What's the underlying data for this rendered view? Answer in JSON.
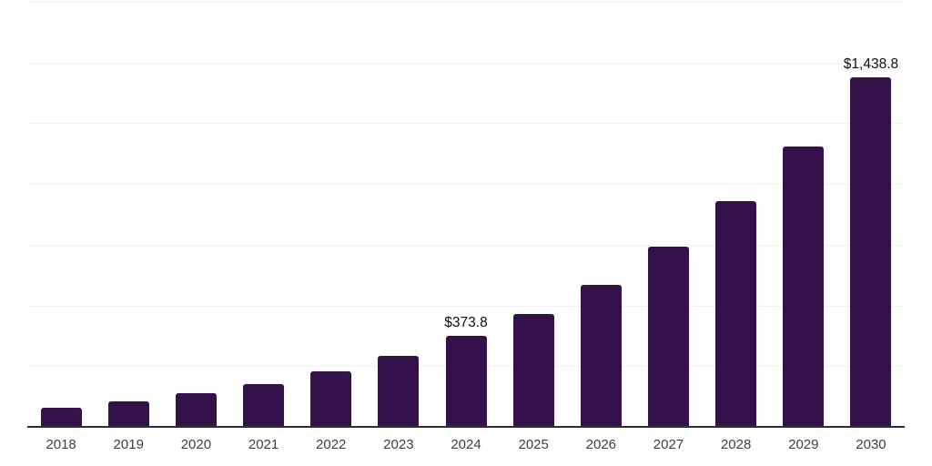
{
  "chart_data": {
    "type": "bar",
    "title": "",
    "xlabel": "",
    "ylabel": "",
    "categories": [
      "2018",
      "2019",
      "2020",
      "2021",
      "2022",
      "2023",
      "2024",
      "2025",
      "2026",
      "2027",
      "2028",
      "2029",
      "2030"
    ],
    "values": [
      80,
      106,
      137,
      176,
      229,
      293,
      373.8,
      464,
      584,
      741,
      928,
      1154,
      1438.8
    ],
    "value_labels": {
      "2024": "$373.8",
      "2030": "$1,438.8"
    },
    "ylim": [
      0,
      1750
    ],
    "gridline_step": 250,
    "grid": true,
    "legend": false,
    "currency_unit": "$"
  },
  "colors": {
    "bar": "#35114B",
    "gridline": "#f3f3f3",
    "axis": "#2e2e2e",
    "tick_label": "#3f3f3f",
    "value_label": "#0f0f0f",
    "background": "#ffffff"
  }
}
